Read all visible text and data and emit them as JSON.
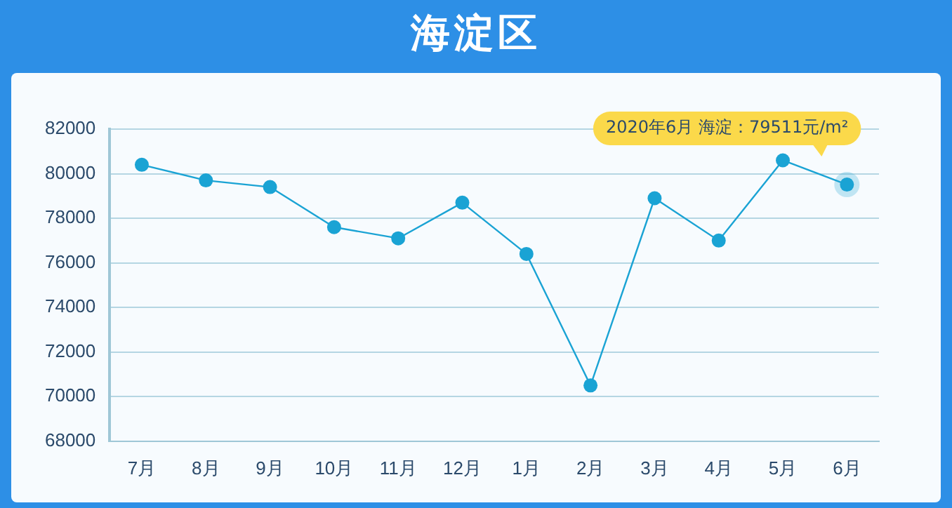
{
  "chart_data": {
    "type": "line",
    "title": "海淀区",
    "categories": [
      "7月",
      "8月",
      "9月",
      "10月",
      "11月",
      "12月",
      "1月",
      "2月",
      "3月",
      "4月",
      "5月",
      "6月"
    ],
    "series": [
      {
        "color": "#1aa3d4",
        "values": [
          80400,
          79700,
          79400,
          77600,
          77100,
          78700,
          76400,
          70500,
          78900,
          77000,
          80600,
          79511
        ]
      }
    ],
    "ylim": [
      68000,
      82000
    ],
    "yticks": [
      68000,
      70000,
      72000,
      74000,
      76000,
      78000,
      80000,
      82000
    ],
    "grid": "y",
    "legend": false,
    "marker": "circle",
    "line_style": "solid",
    "annotations": [
      {
        "text": "2020年6月 海淀：79511元/m²",
        "x": "6月",
        "y": 79511
      }
    ]
  }
}
